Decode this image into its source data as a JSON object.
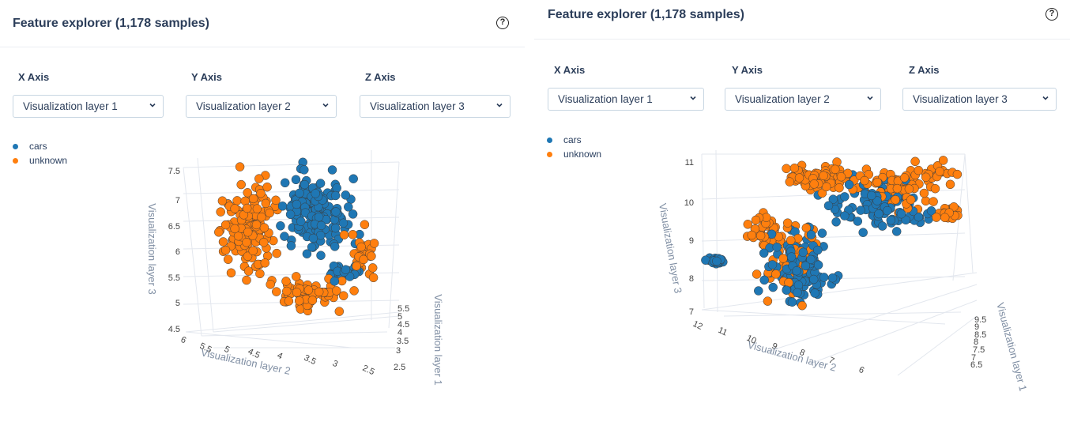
{
  "panels": [
    {
      "title": "Feature explorer (1,178 samples)",
      "help_icon": "help-circle-icon",
      "x_axis_label": "X Axis",
      "y_axis_label": "Y Axis",
      "z_axis_label": "Z Axis",
      "x_axis_value": "Visualization layer 1",
      "y_axis_value": "Visualization layer 2",
      "z_axis_value": "Visualization layer 3",
      "legend": [
        {
          "name": "cars",
          "color": "#1f77b4"
        },
        {
          "name": "unknown",
          "color": "#ff7f0e"
        }
      ],
      "chart_data": {
        "type": "scatter",
        "dimensions": 3,
        "x_title": "Visualization layer 1",
        "y_title": "Visualization layer 2",
        "z_title": "Visualization layer 3",
        "x_ticks": [
          "2.5",
          "3",
          "3.5",
          "4",
          "4.5",
          "5",
          "5.5"
        ],
        "y_ticks": [
          "6",
          "5.5",
          "5",
          "4.5",
          "4",
          "3.5",
          "3",
          "2.5"
        ],
        "z_ticks": [
          "4.5",
          "5",
          "5.5",
          "6",
          "6.5",
          "7",
          "7.5"
        ],
        "series": [
          {
            "name": "cars",
            "color": "#1f77b4"
          },
          {
            "name": "unknown",
            "color": "#ff7f0e"
          }
        ]
      }
    },
    {
      "title": "Feature explorer (1,178 samples)",
      "help_icon": "help-circle-icon",
      "x_axis_label": "X Axis",
      "y_axis_label": "Y Axis",
      "z_axis_label": "Z Axis",
      "x_axis_value": "Visualization layer 1",
      "y_axis_value": "Visualization layer 2",
      "z_axis_value": "Visualization layer 3",
      "legend": [
        {
          "name": "cars",
          "color": "#1f77b4"
        },
        {
          "name": "unknown",
          "color": "#ff7f0e"
        }
      ],
      "chart_data": {
        "type": "scatter",
        "dimensions": 3,
        "x_title": "Visualization layer 1",
        "y_title": "Visualization layer 2",
        "z_title": "Visualization layer 3",
        "x_ticks": [
          "6.5",
          "7",
          "7.5",
          "8",
          "8.5",
          "9",
          "9.5"
        ],
        "y_ticks": [
          "12",
          "11",
          "10",
          "9",
          "8",
          "7",
          "6"
        ],
        "z_ticks": [
          "7",
          "8",
          "9",
          "10",
          "11"
        ],
        "series": [
          {
            "name": "cars",
            "color": "#1f77b4"
          },
          {
            "name": "unknown",
            "color": "#ff7f0e"
          }
        ]
      }
    }
  ]
}
